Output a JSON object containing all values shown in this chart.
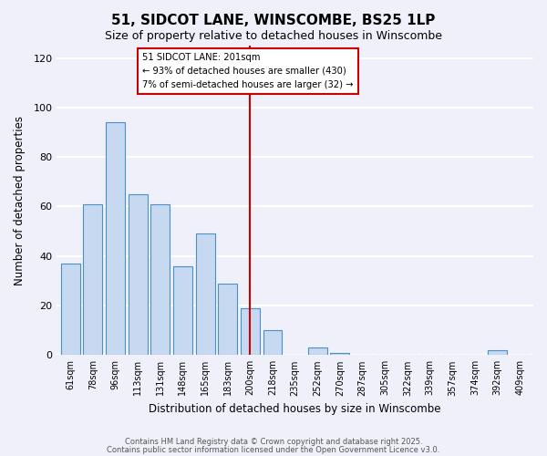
{
  "title": "51, SIDCOT LANE, WINSCOMBE, BS25 1LP",
  "subtitle": "Size of property relative to detached houses in Winscombe",
  "xlabel": "Distribution of detached houses by size in Winscombe",
  "ylabel": "Number of detached properties",
  "bar_labels": [
    "61sqm",
    "78sqm",
    "96sqm",
    "113sqm",
    "131sqm",
    "148sqm",
    "165sqm",
    "183sqm",
    "200sqm",
    "218sqm",
    "235sqm",
    "252sqm",
    "270sqm",
    "287sqm",
    "305sqm",
    "322sqm",
    "339sqm",
    "357sqm",
    "374sqm",
    "392sqm",
    "409sqm"
  ],
  "bar_values": [
    37,
    61,
    94,
    65,
    61,
    36,
    49,
    29,
    19,
    10,
    0,
    3,
    1,
    0,
    0,
    0,
    0,
    0,
    0,
    2,
    0
  ],
  "bar_color": "#c6d9f0",
  "bar_edge_color": "#4a90c4",
  "ylim": [
    0,
    125
  ],
  "yticks": [
    0,
    20,
    40,
    60,
    80,
    100,
    120
  ],
  "vline_x_index": 8,
  "vline_color": "#cc0000",
  "annotation_title": "51 SIDCOT LANE: 201sqm",
  "annotation_line1": "← 93% of detached houses are smaller (430)",
  "annotation_line2": "7% of semi-detached houses are larger (32) →",
  "annotation_box_color": "#ffffff",
  "annotation_border_color": "#cc0000",
  "footer_line1": "Contains HM Land Registry data © Crown copyright and database right 2025.",
  "footer_line2": "Contains public sector information licensed under the Open Government Licence v3.0.",
  "background_color": "#f0f0fa",
  "grid_color": "#ffffff"
}
